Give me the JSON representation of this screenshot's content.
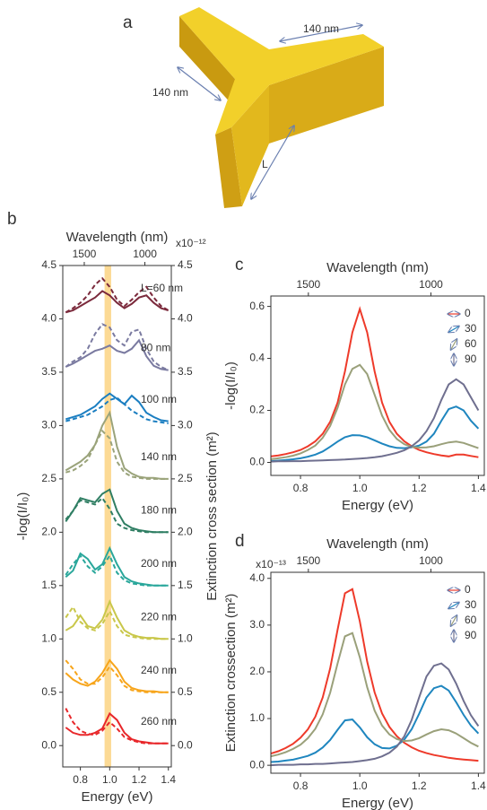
{
  "diagram": {
    "label": "a",
    "dimensions": [
      "140 nm",
      "140 nm",
      "L"
    ]
  },
  "chart_data": [
    {
      "type": "line",
      "panel_label": "b",
      "top_label": "Wavelength (nm)",
      "x_label": "Energy (eV)",
      "y_label": "-log(I/I₀)",
      "y2_label": "Extinction cross section (m²)",
      "y2_multiplier": "x10⁻¹²",
      "x": [
        0.7,
        0.75,
        0.8,
        0.85,
        0.9,
        0.95,
        1.0,
        1.05,
        1.1,
        1.15,
        1.2,
        1.25,
        1.3,
        1.35,
        1.4
      ],
      "xlim": [
        0.68,
        1.42
      ],
      "xticks": [
        0.8,
        {
          "value": 1,
          "label": "1.0"
        },
        1.2,
        1.4
      ],
      "top_ticks": [
        1500,
        1000
      ],
      "ylim": [
        -0.2,
        4.5
      ],
      "yticks": [
        {
          "value": 0,
          "label": "0.0"
        },
        0.5,
        {
          "value": 1,
          "label": "1.0"
        },
        1.5,
        {
          "value": 2,
          "label": "2.0"
        },
        2.5,
        {
          "value": 3,
          "label": "3.0"
        },
        3.5,
        {
          "value": 4,
          "label": "4.0"
        },
        4.5
      ],
      "y2lim": [
        -0.2,
        4.5
      ],
      "y2ticks": [
        {
          "value": 0,
          "label": "0.0"
        },
        0.5,
        {
          "value": 1,
          "label": "1.0"
        },
        1.5,
        {
          "value": 2,
          "label": "2.0"
        },
        2.5,
        {
          "value": 3,
          "label": "3.0"
        },
        3.5,
        {
          "value": 4,
          "label": "4.0"
        },
        4.5
      ],
      "band": [
        0.965,
        1.01
      ],
      "band_color": "#fcd68a",
      "series": [
        {
          "name": "260 nm",
          "color": "#e8272a",
          "values": [
            0.17,
            0.12,
            0.1,
            0.1,
            0.12,
            0.16,
            0.3,
            0.24,
            0.12,
            0.06,
            0.04,
            0.03,
            0.02,
            0.02,
            0.02
          ]
        },
        {
          "color": "#e8272a",
          "dash": true,
          "axis": "y2",
          "values": [
            0.35,
            0.22,
            0.14,
            0.11,
            0.1,
            0.14,
            0.22,
            0.16,
            0.08,
            0.05,
            0.03,
            0.02,
            0.02,
            0.02,
            0.02
          ]
        },
        {
          "name": "240 nm",
          "color": "#f7a51b",
          "values": [
            0.68,
            0.62,
            0.58,
            0.56,
            0.6,
            0.68,
            0.8,
            0.72,
            0.6,
            0.54,
            0.52,
            0.51,
            0.51,
            0.5,
            0.5
          ]
        },
        {
          "color": "#f7a51b",
          "dash": true,
          "axis": "y2",
          "values": [
            0.8,
            0.72,
            0.62,
            0.58,
            0.58,
            0.64,
            0.74,
            0.66,
            0.56,
            0.52,
            0.51,
            0.5,
            0.5,
            0.5,
            0.5
          ]
        },
        {
          "name": "220 nm",
          "color": "#c9c74a",
          "values": [
            1.08,
            1.12,
            1.22,
            1.12,
            1.1,
            1.18,
            1.35,
            1.2,
            1.08,
            1.04,
            1.02,
            1.01,
            1.01,
            1.0,
            1.0
          ]
        },
        {
          "color": "#c9c74a",
          "dash": true,
          "axis": "y2",
          "values": [
            1.2,
            1.3,
            1.16,
            1.1,
            1.08,
            1.14,
            1.26,
            1.12,
            1.04,
            1.02,
            1.01,
            1.0,
            1.0,
            1.0,
            1.0
          ]
        },
        {
          "name": "200 nm",
          "color": "#2aa79b",
          "values": [
            1.58,
            1.64,
            1.8,
            1.75,
            1.65,
            1.7,
            1.85,
            1.7,
            1.58,
            1.54,
            1.52,
            1.51,
            1.5,
            1.5,
            1.5
          ]
        },
        {
          "color": "#2aa79b",
          "dash": true,
          "axis": "y2",
          "values": [
            1.6,
            1.7,
            1.78,
            1.68,
            1.62,
            1.68,
            1.78,
            1.62,
            1.55,
            1.52,
            1.51,
            1.5,
            1.5,
            1.5,
            1.5
          ]
        },
        {
          "name": "180 nm",
          "color": "#2f7e63",
          "values": [
            2.1,
            2.2,
            2.32,
            2.3,
            2.28,
            2.36,
            2.4,
            2.2,
            2.08,
            2.04,
            2.02,
            2.01,
            2.0,
            2.0,
            2.0
          ]
        },
        {
          "color": "#2f7e63",
          "dash": true,
          "axis": "y2",
          "values": [
            2.12,
            2.2,
            2.3,
            2.28,
            2.26,
            2.32,
            2.22,
            2.08,
            2.04,
            2.02,
            2.01,
            2.0,
            2.0,
            2.0,
            2.0
          ]
        },
        {
          "name": "140 nm",
          "color": "#9aa37a",
          "values": [
            2.58,
            2.62,
            2.66,
            2.72,
            2.82,
            3.0,
            3.12,
            2.8,
            2.6,
            2.55,
            2.52,
            2.51,
            2.51,
            2.5,
            2.5
          ]
        },
        {
          "color": "#9aa37a",
          "dash": true,
          "axis": "y2",
          "values": [
            2.56,
            2.58,
            2.62,
            2.68,
            2.82,
            2.95,
            2.88,
            2.66,
            2.56,
            2.52,
            2.51,
            2.5,
            2.5,
            2.5,
            2.5
          ]
        },
        {
          "name": "100 nm",
          "color": "#1b7ec1",
          "values": [
            3.06,
            3.08,
            3.1,
            3.14,
            3.18,
            3.25,
            3.3,
            3.25,
            3.2,
            3.28,
            3.22,
            3.12,
            3.08,
            3.05,
            3.04
          ]
        },
        {
          "color": "#1b7ec1",
          "dash": true,
          "axis": "y2",
          "values": [
            3.04,
            3.06,
            3.08,
            3.1,
            3.14,
            3.18,
            3.24,
            3.26,
            3.2,
            3.14,
            3.1,
            3.06,
            3.04,
            3.03,
            3.02
          ]
        },
        {
          "name": "80 nm",
          "color": "#7a7aa0",
          "values": [
            3.55,
            3.58,
            3.62,
            3.66,
            3.7,
            3.72,
            3.75,
            3.7,
            3.68,
            3.72,
            3.8,
            3.65,
            3.56,
            3.53,
            3.52
          ]
        },
        {
          "color": "#7a7aa0",
          "dash": true,
          "axis": "y2",
          "values": [
            3.55,
            3.6,
            3.64,
            3.72,
            3.86,
            3.95,
            3.92,
            3.8,
            3.75,
            3.88,
            3.9,
            3.72,
            3.6,
            3.55,
            3.52
          ]
        },
        {
          "name": "L=60 nm",
          "color": "#7b2a3c",
          "values": [
            4.06,
            4.08,
            4.12,
            4.16,
            4.2,
            4.26,
            4.22,
            4.15,
            4.1,
            4.14,
            4.2,
            4.22,
            4.15,
            4.1,
            4.08
          ]
        },
        {
          "color": "#7b2a3c",
          "dash": true,
          "axis": "y2",
          "values": [
            4.06,
            4.1,
            4.15,
            4.22,
            4.32,
            4.38,
            4.3,
            4.18,
            4.12,
            4.18,
            4.25,
            4.3,
            4.2,
            4.12,
            4.08
          ]
        }
      ]
    },
    {
      "type": "line",
      "panel_label": "c",
      "top_label": "Wavelength (nm)",
      "x_label": "Energy (eV)",
      "y_label": "-log(I/I₀)",
      "x": [
        0.7,
        0.725,
        0.75,
        0.775,
        0.8,
        0.825,
        0.85,
        0.875,
        0.9,
        0.925,
        0.95,
        0.975,
        1.0,
        1.025,
        1.05,
        1.075,
        1.1,
        1.125,
        1.15,
        1.175,
        1.2,
        1.225,
        1.25,
        1.275,
        1.3,
        1.325,
        1.35,
        1.375,
        1.4
      ],
      "xlim": [
        0.7,
        1.42
      ],
      "xticks": [
        0.8,
        {
          "value": 1,
          "label": "1.0"
        },
        1.2,
        1.4
      ],
      "top_ticks": [
        1500,
        1000
      ],
      "ylim": [
        -0.05,
        0.64
      ],
      "yticks": [
        {
          "value": 0,
          "label": "0.0"
        },
        0.2,
        0.4,
        0.6
      ],
      "series": [
        {
          "name": "0",
          "color": "#ee3a2a",
          "values": [
            0.023,
            0.027,
            0.032,
            0.039,
            0.048,
            0.062,
            0.081,
            0.11,
            0.156,
            0.23,
            0.35,
            0.5,
            0.59,
            0.5,
            0.35,
            0.23,
            0.156,
            0.11,
            0.081,
            0.062,
            0.048,
            0.039,
            0.032,
            0.027,
            0.023,
            0.03,
            0.03,
            0.025,
            0.02
          ]
        },
        {
          "name": "30",
          "color": "#1f86bf",
          "values": [
            0.005,
            0.007,
            0.009,
            0.012,
            0.016,
            0.022,
            0.03,
            0.042,
            0.06,
            0.08,
            0.097,
            0.105,
            0.104,
            0.097,
            0.085,
            0.072,
            0.062,
            0.056,
            0.055,
            0.058,
            0.065,
            0.08,
            0.11,
            0.16,
            0.205,
            0.215,
            0.2,
            0.16,
            0.13
          ]
        },
        {
          "name": "60",
          "color": "#9aa07a",
          "values": [
            0.012,
            0.016,
            0.02,
            0.026,
            0.035,
            0.048,
            0.065,
            0.095,
            0.14,
            0.21,
            0.3,
            0.36,
            0.375,
            0.34,
            0.26,
            0.18,
            0.125,
            0.09,
            0.07,
            0.06,
            0.057,
            0.058,
            0.062,
            0.07,
            0.077,
            0.08,
            0.075,
            0.065,
            0.055
          ]
        },
        {
          "name": "90",
          "color": "#6f6f8f",
          "values": [
            0.003,
            0.004,
            0.004,
            0.005,
            0.005,
            0.006,
            0.007,
            0.008,
            0.009,
            0.01,
            0.011,
            0.013,
            0.015,
            0.017,
            0.02,
            0.024,
            0.03,
            0.037,
            0.047,
            0.062,
            0.085,
            0.12,
            0.17,
            0.24,
            0.3,
            0.32,
            0.3,
            0.25,
            0.2
          ]
        }
      ]
    },
    {
      "type": "line",
      "panel_label": "d",
      "top_label": "Wavelength (nm)",
      "x_label": "Energy (eV)",
      "y_label": "Extinction crossection  (m²)",
      "y_multiplier": "x10⁻¹³",
      "x": [
        0.7,
        0.725,
        0.75,
        0.775,
        0.8,
        0.825,
        0.85,
        0.875,
        0.9,
        0.925,
        0.95,
        0.975,
        1.0,
        1.025,
        1.05,
        1.075,
        1.1,
        1.125,
        1.15,
        1.175,
        1.2,
        1.225,
        1.25,
        1.275,
        1.3,
        1.325,
        1.35,
        1.375,
        1.4
      ],
      "xlim": [
        0.7,
        1.42
      ],
      "xticks": [
        0.8,
        {
          "value": 1,
          "label": "1.0"
        },
        1.2,
        1.4
      ],
      "top_ticks": [
        1500,
        1000
      ],
      "ylim": [
        -0.17,
        4.13
      ],
      "yticks": [
        {
          "value": 0,
          "label": "0.0"
        },
        {
          "value": 1,
          "label": "1.0"
        },
        {
          "value": 2,
          "label": "2.0"
        },
        {
          "value": 3,
          "label": "3.0"
        },
        {
          "value": 4,
          "label": "4.0"
        }
      ],
      "series": [
        {
          "name": "0",
          "color": "#ee3a2a",
          "values": [
            0.25,
            0.3,
            0.37,
            0.46,
            0.59,
            0.77,
            1.04,
            1.45,
            2.07,
            2.9,
            3.68,
            3.77,
            3.08,
            2.22,
            1.56,
            1.11,
            0.82,
            0.62,
            0.48,
            0.385,
            0.31,
            0.26,
            0.22,
            0.19,
            0.16,
            0.14,
            0.124,
            0.11,
            0.097
          ]
        },
        {
          "name": "30",
          "color": "#1f86bf",
          "values": [
            0.07,
            0.08,
            0.1,
            0.12,
            0.16,
            0.2,
            0.27,
            0.38,
            0.54,
            0.76,
            0.96,
            0.98,
            0.81,
            0.6,
            0.45,
            0.37,
            0.36,
            0.42,
            0.55,
            0.77,
            1.1,
            1.45,
            1.65,
            1.7,
            1.6,
            1.35,
            1.08,
            0.85,
            0.68
          ]
        },
        {
          "name": "60",
          "color": "#9aa07a",
          "values": [
            0.19,
            0.23,
            0.28,
            0.35,
            0.44,
            0.58,
            0.78,
            1.09,
            1.55,
            2.18,
            2.76,
            2.83,
            2.31,
            1.67,
            1.17,
            0.85,
            0.66,
            0.56,
            0.52,
            0.53,
            0.58,
            0.66,
            0.73,
            0.77,
            0.75,
            0.68,
            0.58,
            0.48,
            0.4
          ]
        },
        {
          "name": "90",
          "color": "#6f6f8f",
          "values": [
            0.0,
            0.01,
            0.01,
            0.01,
            0.02,
            0.02,
            0.03,
            0.03,
            0.04,
            0.05,
            0.06,
            0.07,
            0.09,
            0.11,
            0.14,
            0.19,
            0.27,
            0.4,
            0.62,
            0.97,
            1.45,
            1.9,
            2.13,
            2.18,
            2.05,
            1.75,
            1.38,
            1.07,
            0.84
          ]
        }
      ]
    }
  ]
}
